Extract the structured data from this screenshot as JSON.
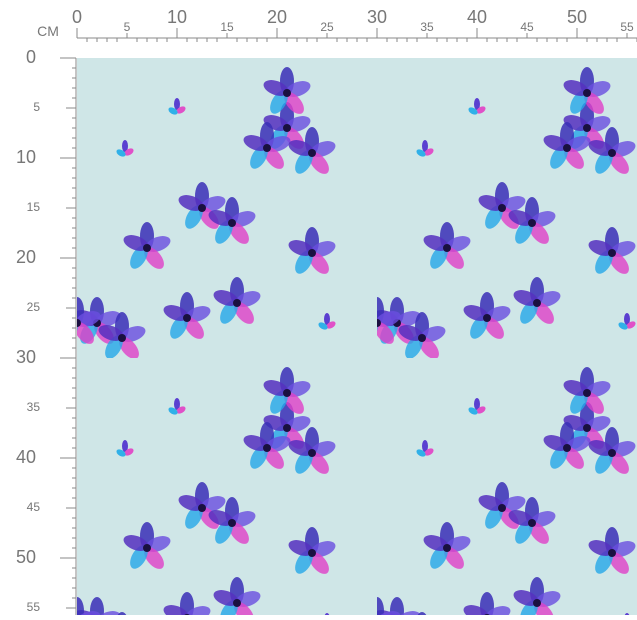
{
  "ruler": {
    "unit": "CM",
    "top": [
      "0",
      "5",
      "10",
      "15",
      "20",
      "25",
      "30",
      "35",
      "40",
      "45",
      "50",
      "55"
    ],
    "left": [
      "0",
      "5",
      "10",
      "15",
      "20",
      "25",
      "30",
      "35",
      "40",
      "45",
      "50",
      "55"
    ]
  }
}
